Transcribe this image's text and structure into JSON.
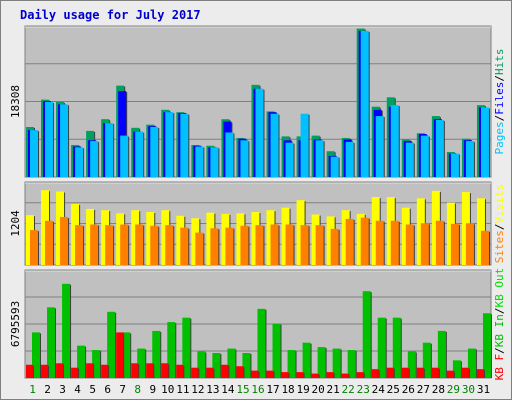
{
  "title": "Daily usage for July 2017",
  "colors": {
    "hits": "#00a060",
    "files": "#0000ff",
    "pages": "#00c0ff",
    "visits": "#ffff00",
    "sites": "#ff8000",
    "kbin": "#00c000",
    "kbout": "#00e000",
    "kbf": "#ff0000",
    "plot_bg": "#c0c0c0",
    "page_bg": "#ececec",
    "grid": "#808080"
  },
  "chart_data": [
    {
      "type": "bar",
      "name": "hits-files-pages",
      "max_label": "18308",
      "ylim": [
        0,
        18308
      ],
      "series_labels": [
        "Pages",
        "Files",
        "Hits"
      ],
      "categories": [
        "1",
        "2",
        "3",
        "4",
        "5",
        "6",
        "7",
        "8",
        "9",
        "10",
        "11",
        "12",
        "13",
        "14",
        "15",
        "16",
        "17",
        "18",
        "19",
        "20",
        "21",
        "22",
        "23",
        "24",
        "25",
        "26",
        "27",
        "28",
        "29",
        "30",
        "31"
      ],
      "series": [
        {
          "name": "Hits",
          "values": [
            6400,
            9900,
            9600,
            4100,
            5900,
            7400,
            11700,
            6300,
            6700,
            8600,
            8300,
            4100,
            4000,
            7400,
            5000,
            11800,
            8400,
            5200,
            5200,
            5300,
            3300,
            5000,
            19000,
            9000,
            10200,
            4800,
            5600,
            7800,
            3200,
            4900,
            9200
          ]
        },
        {
          "name": "Files",
          "values": [
            6000,
            9700,
            9300,
            3900,
            4700,
            6900,
            11000,
            5800,
            6500,
            8300,
            8200,
            4000,
            3800,
            7100,
            4900,
            11300,
            8300,
            4700,
            4700,
            4800,
            2700,
            4800,
            18700,
            8600,
            9000,
            4600,
            5500,
            7400,
            3000,
            4700,
            8900
          ]
        },
        {
          "name": "Pages",
          "values": [
            6000,
            9600,
            9300,
            3800,
            4600,
            6900,
            5300,
            5800,
            6400,
            8300,
            8100,
            3900,
            3800,
            5700,
            4700,
            11300,
            8100,
            4400,
            8100,
            4700,
            2600,
            4500,
            18700,
            7800,
            9200,
            4400,
            5300,
            7300,
            3000,
            4600,
            8900
          ]
        }
      ]
    },
    {
      "type": "bar",
      "name": "visits-sites",
      "max_label": "1204",
      "ylim": [
        0,
        1204
      ],
      "series_labels": [
        "Sites",
        "Visits"
      ],
      "categories": [
        "1",
        "2",
        "3",
        "4",
        "5",
        "6",
        "7",
        "8",
        "9",
        "10",
        "11",
        "12",
        "13",
        "14",
        "15",
        "16",
        "17",
        "18",
        "19",
        "20",
        "21",
        "22",
        "23",
        "24",
        "25",
        "26",
        "27",
        "28",
        "29",
        "30",
        "31"
      ],
      "series": [
        {
          "name": "Visits",
          "values": [
            800,
            1200,
            1180,
            980,
            900,
            880,
            830,
            880,
            850,
            880,
            790,
            750,
            840,
            820,
            830,
            850,
            880,
            920,
            1040,
            810,
            780,
            880,
            820,
            1090,
            1090,
            920,
            1070,
            1190,
            1000,
            1170,
            1070
          ]
        },
        {
          "name": "Sites",
          "values": [
            560,
            710,
            770,
            640,
            650,
            640,
            650,
            650,
            630,
            640,
            600,
            520,
            590,
            600,
            630,
            640,
            650,
            650,
            640,
            640,
            580,
            740,
            760,
            710,
            710,
            650,
            670,
            710,
            660,
            670,
            550
          ]
        }
      ]
    },
    {
      "type": "bar",
      "name": "kbytes",
      "max_label": "6795593",
      "ylim": [
        0,
        6795593
      ],
      "series_labels": [
        "KB F",
        "KB In",
        "KB Out"
      ],
      "categories": [
        "1",
        "2",
        "3",
        "4",
        "5",
        "6",
        "7",
        "8",
        "9",
        "10",
        "11",
        "12",
        "13",
        "14",
        "15",
        "16",
        "17",
        "18",
        "19",
        "20",
        "21",
        "22",
        "23",
        "24",
        "25",
        "26",
        "27",
        "28",
        "29",
        "30",
        "31"
      ],
      "series": [
        {
          "name": "KB Out",
          "values": [
            3100000,
            4800000,
            6400000,
            2200000,
            1900000,
            4500000,
            3100000,
            2000000,
            3200000,
            3800000,
            4100000,
            1800000,
            1700000,
            2000000,
            1700000,
            4700000,
            3700000,
            1900000,
            2400000,
            2100000,
            2000000,
            1900000,
            5900000,
            4100000,
            4100000,
            1800000,
            2400000,
            3200000,
            1200000,
            2000000,
            4400000
          ]
        },
        {
          "name": "KB F",
          "values": [
            900000,
            900000,
            1000000,
            700000,
            1000000,
            900000,
            3100000,
            1000000,
            1000000,
            1000000,
            900000,
            700000,
            700000,
            900000,
            800000,
            500000,
            500000,
            400000,
            400000,
            300000,
            400000,
            300000,
            400000,
            600000,
            700000,
            700000,
            700000,
            700000,
            500000,
            700000,
            600000
          ]
        }
      ]
    }
  ],
  "x_highlight_days": [
    "1",
    "8",
    "15",
    "16",
    "22",
    "23",
    "29",
    "30"
  ]
}
